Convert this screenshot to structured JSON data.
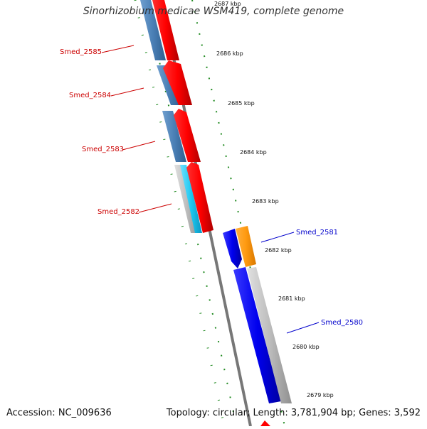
{
  "title": "Sinorhizobium medicae WSM419, complete genome",
  "footer": {
    "accession": "Accession: NC_009636",
    "summary": "Topology: circular; Length: 3,781,904 bp; Genes: 3,592"
  },
  "colors": {
    "forward_label": "#cc0000",
    "reverse_label": "#0000cc",
    "tick": "#228b22",
    "backbone": "#777777"
  },
  "kbp_ticks": [
    "2687 kbp",
    "2686 kbp",
    "2685 kbp",
    "2684 kbp",
    "2683 kbp",
    "2682 kbp",
    "2681 kbp",
    "2680 kbp",
    "2679 kbp"
  ],
  "forward_genes": [
    {
      "label": "Smed_2585"
    },
    {
      "label": "Smed_2584"
    },
    {
      "label": "Smed_2583"
    },
    {
      "label": "Smed_2582"
    }
  ],
  "reverse_genes": [
    {
      "label": "Smed_2581"
    },
    {
      "label": "Smed_2580"
    }
  ]
}
